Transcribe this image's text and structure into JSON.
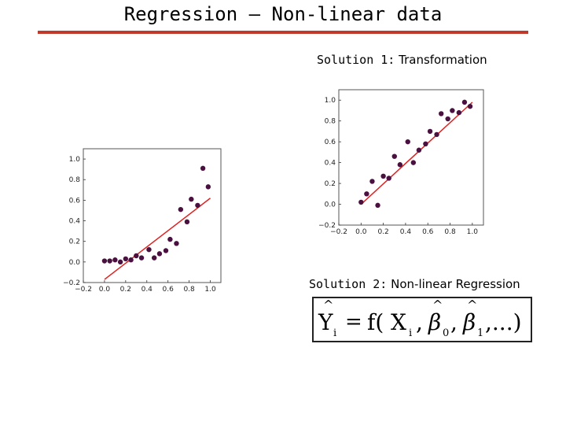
{
  "slide": {
    "title": "Regression – Non-linear data",
    "rule_color": "#c0392b"
  },
  "solutions": {
    "s1_prefix": "Solution 1:",
    "s1_text": "Transformation",
    "s2_prefix": "Solution 2:",
    "s2_text": "Non-linear Regression"
  },
  "formula": {
    "text": "Ŷi = f(Xi, β̂0, β̂1, ...)",
    "lhs_var": "Y",
    "lhs_sub": "i",
    "equals": "=",
    "func_open": "f(",
    "x_var": "X",
    "x_sub": "i",
    "comma": ",",
    "beta": "β",
    "beta0_sub": "0",
    "beta1_sub": "1",
    "tail": ",...)"
  },
  "chart_data": [
    {
      "id": "original",
      "type": "scatter",
      "title": "",
      "xlabel": "",
      "ylabel": "",
      "xlim": [
        -0.2,
        1.1
      ],
      "ylim": [
        -0.2,
        1.1
      ],
      "xticks": [
        "−0.2",
        "0.0",
        "0.2",
        "0.4",
        "0.6",
        "0.8",
        "1.0"
      ],
      "xtick_values": [
        -0.2,
        0.0,
        0.2,
        0.4,
        0.6,
        0.8,
        1.0
      ],
      "yticks": [
        "−0.2",
        "0.0",
        "0.2",
        "0.4",
        "0.6",
        "0.8",
        "1.0"
      ],
      "ytick_values": [
        -0.2,
        0.0,
        0.2,
        0.4,
        0.6,
        0.8,
        1.0
      ],
      "point_color": "#4a1040",
      "line_color": "#e02020",
      "x": [
        0.0,
        0.05,
        0.1,
        0.15,
        0.2,
        0.25,
        0.3,
        0.35,
        0.42,
        0.47,
        0.52,
        0.58,
        0.62,
        0.68,
        0.72,
        0.78,
        0.82,
        0.88,
        0.93,
        0.98
      ],
      "y": [
        0.01,
        0.01,
        0.02,
        0.0,
        0.03,
        0.02,
        0.06,
        0.04,
        0.12,
        0.04,
        0.08,
        0.11,
        0.22,
        0.18,
        0.51,
        0.39,
        0.61,
        0.55,
        0.91,
        0.73
      ],
      "fit": {
        "x": [
          0.0,
          1.0
        ],
        "y": [
          -0.17,
          0.62
        ]
      }
    },
    {
      "id": "transformed",
      "type": "scatter",
      "title": "",
      "xlabel": "",
      "ylabel": "",
      "xlim": [
        -0.2,
        1.1
      ],
      "ylim": [
        -0.2,
        1.1
      ],
      "xticks": [
        "−0.2",
        "0.0",
        "0.2",
        "0.4",
        "0.6",
        "0.8",
        "1.0"
      ],
      "xtick_values": [
        -0.2,
        0.0,
        0.2,
        0.4,
        0.6,
        0.8,
        1.0
      ],
      "yticks": [
        "−0.2",
        "0.0",
        "0.2",
        "0.4",
        "0.6",
        "0.8",
        "1.0"
      ],
      "ytick_values": [
        -0.2,
        0.0,
        0.2,
        0.4,
        0.6,
        0.8,
        1.0
      ],
      "point_color": "#4a1040",
      "line_color": "#e02020",
      "x": [
        0.0,
        0.05,
        0.1,
        0.15,
        0.2,
        0.25,
        0.3,
        0.35,
        0.42,
        0.47,
        0.52,
        0.58,
        0.62,
        0.68,
        0.72,
        0.78,
        0.82,
        0.88,
        0.93,
        0.98
      ],
      "y": [
        0.02,
        0.1,
        0.22,
        -0.01,
        0.27,
        0.25,
        0.46,
        0.38,
        0.6,
        0.4,
        0.52,
        0.58,
        0.7,
        0.67,
        0.87,
        0.82,
        0.9,
        0.88,
        0.98,
        0.94
      ],
      "fit": {
        "x": [
          0.0,
          1.0
        ],
        "y": [
          0.0,
          0.98
        ]
      }
    }
  ]
}
